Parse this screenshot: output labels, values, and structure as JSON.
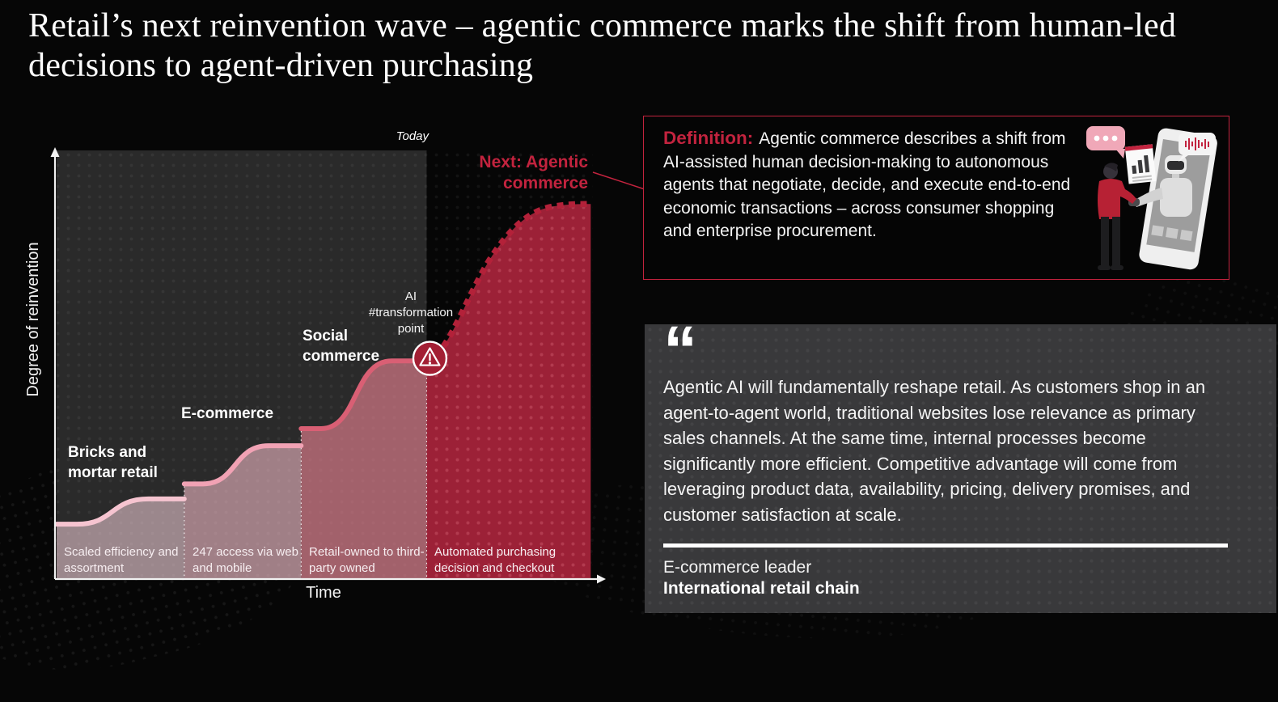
{
  "title": "Retail’s next reinvention wave – agentic commerce marks the shift from human-led decisions to agent-driven purchasing",
  "colors": {
    "accent": "#c2233e",
    "accent_dark": "#a31f34",
    "agentic_fill": "#9c2137",
    "plot_background": "#2a2a2a",
    "axis": "#f2f2f2",
    "quote_panel_background": "#39393b",
    "slide_background": "#060606"
  },
  "chart_data": {
    "type": "area",
    "title": "Retail reinvention waves over time",
    "xlabel": "Time",
    "ylabel": "Degree of reinvention",
    "grid": false,
    "today_marker": {
      "label": "Today",
      "x_frac": 0.69
    },
    "annotation": {
      "label": "AI #transformation point",
      "x_frac": 0.696,
      "level": 0.515
    },
    "stages": [
      {
        "name": "Bricks and mortar retail",
        "description": "Scaled efficiency and assortment",
        "x_start": 0.0,
        "x_end": 0.238,
        "level_start": 0.128,
        "level_end": 0.187,
        "line_color": "#f6c4d0",
        "fill_color": "rgba(247,211,220,0.55)",
        "dashed": false
      },
      {
        "name": "E-commerce",
        "description": "247 access via web and mobile",
        "x_start": 0.238,
        "x_end": 0.456,
        "level_start": 0.222,
        "level_end": 0.311,
        "line_color": "#f1a2b4",
        "fill_color": "rgba(246,190,202,0.58)",
        "dashed": false
      },
      {
        "name": "Social commerce",
        "description": "Retail-owned to third-party owned",
        "x_start": 0.456,
        "x_end": 0.69,
        "level_start": 0.351,
        "level_end": 0.509,
        "level_today": 0.505,
        "line_color": "#d95f74",
        "fill_color": "rgba(235,130,147,0.62)",
        "dashed": false
      },
      {
        "name": "Next: Agentic commerce",
        "description": "Automated purchasing decision and checkout",
        "x_start": 0.69,
        "x_end": 0.996,
        "level_start": 0.505,
        "level_end": 0.875,
        "line_color": "#b32139",
        "fill_color": "#9c2137",
        "dashed": true
      }
    ]
  },
  "definition": {
    "heading": "Definition:",
    "body": "Agentic commerce describes a shift from AI-assisted human decision-making to autonomous agents that negotiate, decide, and execute end-to-end economic transactions – across consumer shopping and enterprise procurement."
  },
  "quote": {
    "glyph": "“",
    "text": "Agentic AI will fundamentally reshape retail. As customers shop in an agent-to-agent world, traditional websites lose relevance as primary sales channels. At the same time, internal processes become significantly more efficient. Competitive advantage will come from leveraging product data, availability, pricing, delivery promises, and customer satisfaction at scale.",
    "attribution_role": "E-commerce leader",
    "attribution_org": "International retail chain"
  }
}
